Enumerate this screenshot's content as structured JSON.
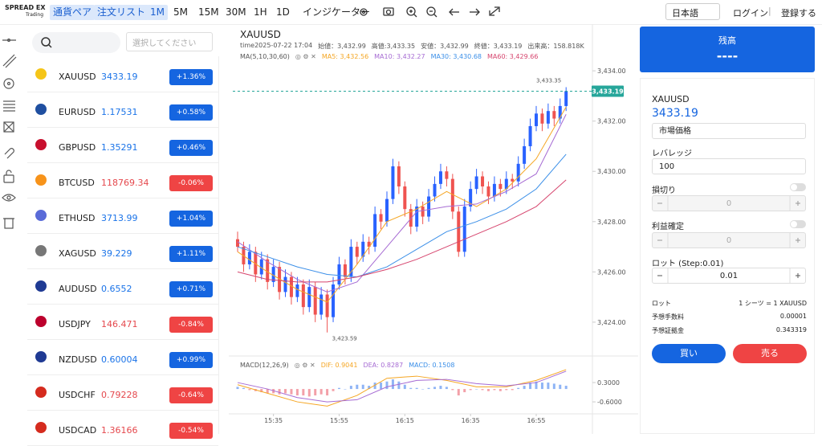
{
  "header": {
    "logo": "SPREAD EX",
    "logo_sub": "Trading",
    "nav": [
      "通貨ペア",
      "注文リスト"
    ],
    "timeframes": [
      "1M",
      "5M",
      "15M",
      "30M",
      "1H",
      "1D"
    ],
    "active_timeframe": "1M",
    "indicator": "インジケーター",
    "language": "日本語",
    "login": "ログイン",
    "register": "登録する"
  },
  "watchlist": {
    "select_placeholder": "選択してください",
    "rows": [
      {
        "symbol": "XAUUSD",
        "price": "3433.19",
        "change": "+1.36%"
      },
      {
        "symbol": "EURUSD",
        "price": "1.17531",
        "change": "+0.58%"
      },
      {
        "symbol": "GBPUSD",
        "price": "1.35291",
        "change": "+0.46%"
      },
      {
        "symbol": "BTCUSD",
        "price": "118769.34",
        "change": "-0.06%"
      },
      {
        "symbol": "ETHUSD",
        "price": "3713.99",
        "change": "+1.04%"
      },
      {
        "symbol": "XAGUSD",
        "price": "39.229",
        "change": "+1.11%"
      },
      {
        "symbol": "AUDUSD",
        "price": "0.6552",
        "change": "+0.71%"
      },
      {
        "symbol": "USDJPY",
        "price": "146.471",
        "change": "-0.84%"
      },
      {
        "symbol": "NZDUSD",
        "price": "0.60004",
        "change": "+0.99%"
      },
      {
        "symbol": "USDCHF",
        "price": "0.79228",
        "change": "-0.64%"
      },
      {
        "symbol": "USDCAD",
        "price": "1.36166",
        "change": "-0.54%"
      }
    ]
  },
  "chart_data": {
    "type": "candlestick",
    "symbol": "XAUUSD",
    "info": [
      "time2025-07-22 17:04",
      "始値：3,432.99",
      "高値:3,433.35",
      "安値：3,432.99",
      "終値：3,433.19",
      "出来高：158.818K"
    ],
    "ma_title": "MA(5,10,30,60)",
    "up_color": "#2962ff",
    "down_color": "#ef5350",
    "candles": [
      [
        3427.3,
        3427.6,
        3426.8,
        3427.0
      ],
      [
        3427.0,
        3427.2,
        3426.0,
        3426.3
      ],
      [
        3426.3,
        3427.1,
        3426.1,
        3426.8
      ],
      [
        3426.8,
        3427.0,
        3425.6,
        3425.9
      ],
      [
        3425.9,
        3426.8,
        3425.7,
        3426.5
      ],
      [
        3426.5,
        3426.7,
        3425.3,
        3425.6
      ],
      [
        3425.6,
        3426.5,
        3425.4,
        3426.2
      ],
      [
        3426.2,
        3426.4,
        3424.9,
        3425.2
      ],
      [
        3425.2,
        3426.1,
        3425.0,
        3425.8
      ],
      [
        3425.8,
        3426.0,
        3424.7,
        3425.0
      ],
      [
        3425.0,
        3425.8,
        3424.8,
        3425.5
      ],
      [
        3425.5,
        3425.7,
        3424.3,
        3424.6
      ],
      [
        3424.6,
        3425.7,
        3424.4,
        3425.4
      ],
      [
        3425.4,
        3425.6,
        3424.0,
        3424.3
      ],
      [
        3424.3,
        3425.4,
        3424.1,
        3425.1
      ],
      [
        3425.1,
        3425.3,
        3423.59,
        3424.2
      ],
      [
        3424.2,
        3425.8,
        3424.0,
        3425.5
      ],
      [
        3425.5,
        3426.6,
        3425.3,
        3426.3
      ],
      [
        3426.3,
        3426.5,
        3425.5,
        3425.8
      ],
      [
        3425.8,
        3427.3,
        3425.6,
        3427.0
      ],
      [
        3427.0,
        3427.2,
        3426.3,
        3426.6
      ],
      [
        3426.6,
        3427.5,
        3426.4,
        3427.2
      ],
      [
        3427.2,
        3427.4,
        3426.7,
        3427.0
      ],
      [
        3427.0,
        3428.6,
        3426.8,
        3428.3
      ],
      [
        3428.3,
        3428.5,
        3427.7,
        3428.0
      ],
      [
        3428.0,
        3429.2,
        3427.8,
        3428.9
      ],
      [
        3428.9,
        3430.5,
        3428.7,
        3430.2
      ],
      [
        3430.2,
        3430.4,
        3429.1,
        3429.4
      ],
      [
        3429.4,
        3429.6,
        3428.2,
        3428.5
      ],
      [
        3428.5,
        3428.7,
        3427.5,
        3427.8
      ],
      [
        3427.8,
        3428.9,
        3427.6,
        3428.6
      ],
      [
        3428.6,
        3428.8,
        3427.9,
        3428.2
      ],
      [
        3428.2,
        3429.3,
        3428.0,
        3429.0
      ],
      [
        3429.0,
        3429.8,
        3428.8,
        3429.5
      ],
      [
        3429.5,
        3430.3,
        3429.3,
        3430.0
      ],
      [
        3430.0,
        3430.2,
        3429.4,
        3429.7
      ],
      [
        3429.7,
        3429.9,
        3428.1,
        3428.4
      ],
      [
        3428.4,
        3428.6,
        3426.6,
        3426.8
      ],
      [
        3426.8,
        3428.9,
        3426.6,
        3428.6
      ],
      [
        3428.6,
        3429.6,
        3428.4,
        3429.3
      ],
      [
        3429.3,
        3430.1,
        3429.1,
        3429.8
      ],
      [
        3429.8,
        3430.0,
        3429.1,
        3429.4
      ],
      [
        3429.4,
        3429.6,
        3428.7,
        3429.0
      ],
      [
        3429.0,
        3429.8,
        3428.8,
        3429.5
      ],
      [
        3429.5,
        3429.7,
        3429.0,
        3429.3
      ],
      [
        3429.3,
        3430.0,
        3429.1,
        3429.7
      ],
      [
        3429.7,
        3429.9,
        3429.3,
        3429.6
      ],
      [
        3429.6,
        3430.6,
        3429.4,
        3430.3
      ],
      [
        3430.3,
        3431.3,
        3430.1,
        3431.0
      ],
      [
        3431.0,
        3432.1,
        3430.8,
        3431.8
      ],
      [
        3431.8,
        3432.6,
        3431.6,
        3432.3
      ],
      [
        3432.3,
        3432.5,
        3431.6,
        3431.9
      ],
      [
        3431.9,
        3432.7,
        3431.7,
        3432.4
      ],
      [
        3432.4,
        3432.6,
        3431.8,
        3432.1
      ],
      [
        3432.1,
        3432.9,
        3431.9,
        3432.6
      ],
      [
        3432.6,
        3433.35,
        3432.4,
        3433.19
      ]
    ],
    "ylim": [
      3422.75,
      3434.26
    ],
    "yticks": [
      {
        "value": 3434,
        "label": "3,434.00"
      },
      {
        "value": 3432,
        "label": "3,432.00"
      },
      {
        "value": 3430,
        "label": "3,430.00"
      },
      {
        "value": 3428,
        "label": "3,428.00"
      },
      {
        "value": 3426,
        "label": "3,426.00"
      },
      {
        "value": 3424,
        "label": "3,424.00"
      }
    ],
    "last_price": {
      "value": 3433.19,
      "label": "3,433.19"
    },
    "high_label": {
      "value": 3433.35,
      "label": "3,433.35"
    },
    "low_label": {
      "value": 3423.59,
      "label": "3,423.59"
    },
    "ma_index": [
      0,
      5,
      10,
      15,
      20,
      25,
      30,
      35,
      40,
      45,
      50,
      55
    ],
    "ma": [
      {
        "label": "MA5: 3,432.56",
        "color": "#f5a623",
        "values": [
          3426.8,
          3426.0,
          3425.3,
          3424.8,
          3426.3,
          3428.0,
          3428.5,
          3429.2,
          3428.6,
          3429.3,
          3430.5,
          3432.56
        ]
      },
      {
        "label": "MA10: 3,432.27",
        "color": "#a66bd3",
        "values": [
          3427.2,
          3426.4,
          3425.7,
          3425.2,
          3425.6,
          3427.0,
          3428.4,
          3428.6,
          3428.7,
          3429.2,
          3429.9,
          3432.27
        ]
      },
      {
        "label": "MA30: 3,430.68",
        "color": "#3b8fe8",
        "values": [
          3427.0,
          3426.6,
          3426.2,
          3425.9,
          3425.8,
          3426.2,
          3426.9,
          3427.6,
          3428.0,
          3428.5,
          3429.3,
          3430.68
        ]
      },
      {
        "label": "MA60: 3,429.66",
        "color": "#d6456e",
        "values": [
          3426.0,
          3425.7,
          3425.6,
          3425.6,
          3425.8,
          3426.1,
          3426.5,
          3427.0,
          3427.5,
          3428.0,
          3428.6,
          3429.66
        ]
      }
    ],
    "macd": {
      "title": "MACD(12,26,9)",
      "ylim": [
        -1.16,
        1.09
      ],
      "yticks": [
        {
          "value": 0.3,
          "label": "0.3000"
        },
        {
          "value": -0.6,
          "label": "-0.6000"
        }
      ],
      "hist": [
        0.1,
        0.05,
        -0.05,
        -0.1,
        -0.15,
        -0.2,
        -0.2,
        -0.25,
        -0.2,
        -0.25,
        -0.3,
        -0.3,
        -0.35,
        -0.3,
        -0.25,
        -0.3,
        -0.1,
        0.05,
        0.0,
        0.15,
        0.2,
        0.2,
        0.15,
        0.3,
        0.3,
        0.35,
        0.45,
        0.35,
        0.2,
        0.05,
        0.05,
        0.0,
        0.05,
        0.1,
        0.15,
        0.1,
        -0.05,
        -0.3,
        -0.15,
        -0.05,
        0.0,
        -0.05,
        -0.1,
        -0.05,
        -0.1,
        -0.05,
        -0.05,
        0.05,
        0.15,
        0.3,
        0.35,
        0.3,
        0.3,
        0.25,
        0.2,
        0.1508
      ],
      "hist_label": "MACD: 0.1508",
      "hist_color": "#3b8fe8",
      "lines": [
        {
          "label": "DIF: 0.9041",
          "color": "#f5a623",
          "values": [
            0.2,
            -0.2,
            -0.6,
            -0.8,
            -0.3,
            0.5,
            0.6,
            0.4,
            0.1,
            0.1,
            0.4,
            0.9041
          ]
        },
        {
          "label": "DEA: 0.8287",
          "color": "#a66bd3",
          "values": [
            0.3,
            0.0,
            -0.4,
            -0.6,
            -0.5,
            0.1,
            0.4,
            0.45,
            0.25,
            0.15,
            0.3,
            0.8287
          ]
        }
      ]
    },
    "time_ticks": [
      {
        "value": 6,
        "label": "15:35"
      },
      {
        "value": 17,
        "label": "15:55"
      },
      {
        "value": 28,
        "label": "16:15"
      },
      {
        "value": 39,
        "label": "16:35"
      },
      {
        "value": 50,
        "label": "16:55"
      }
    ]
  },
  "order": {
    "balance_title": "残高",
    "balance": "----",
    "symbol": "XAUUSD",
    "price": "3433.19",
    "order_type": "市場価格",
    "leverage_label": "レバレッジ",
    "leverage": "100",
    "stop_loss_label": "損切り",
    "stop_loss": "0",
    "take_profit_label": "利益確定",
    "take_profit": "0",
    "lot_label": "ロット (Step:0.01)",
    "lot": "0.01",
    "info": [
      [
        "ロット",
        "1 シーツ = 1 XAUUSD"
      ],
      [
        "予想手数料",
        "0.00001"
      ],
      [
        "予想証拠金",
        "0.343319"
      ]
    ],
    "buy": "買い",
    "sell": "売る"
  }
}
